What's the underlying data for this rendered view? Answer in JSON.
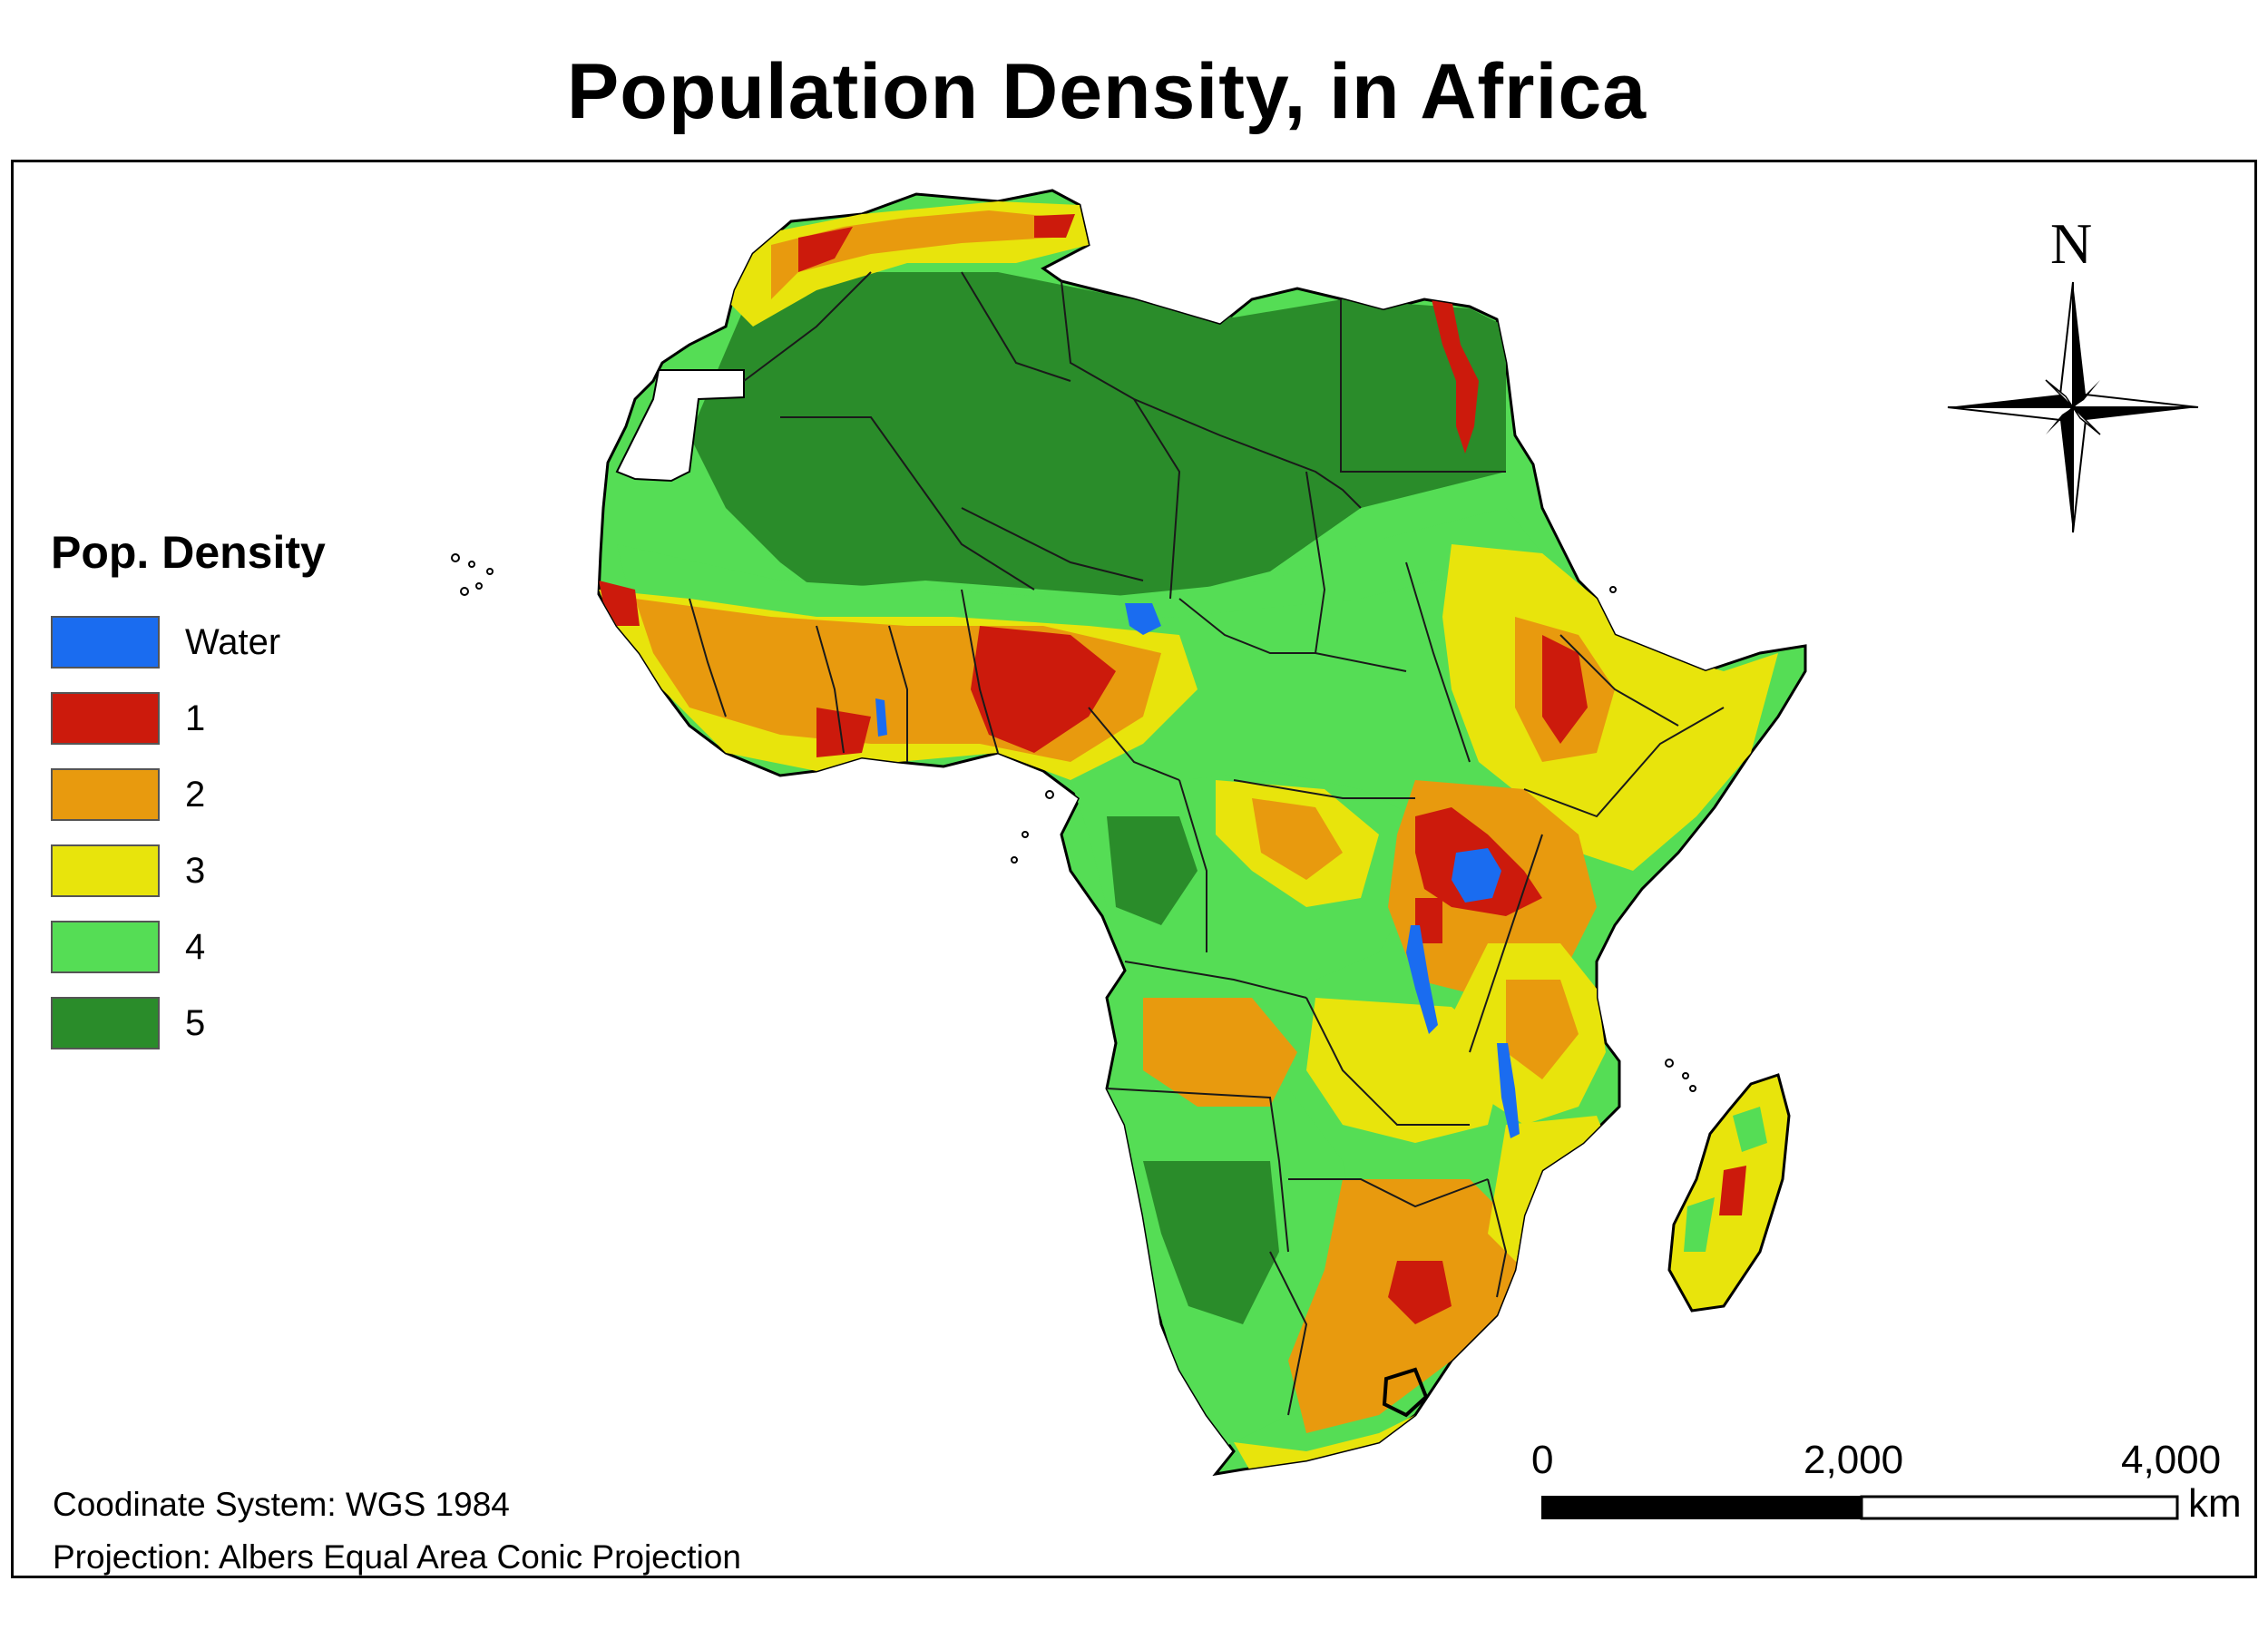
{
  "title": "Population Density, in Africa",
  "legend": {
    "title": "Pop. Density",
    "items": [
      {
        "label": "Water",
        "color": "#1a6cf0"
      },
      {
        "label": "1",
        "color": "#cc1a0c"
      },
      {
        "label": "2",
        "color": "#e89a0e"
      },
      {
        "label": "3",
        "color": "#e8e40c"
      },
      {
        "label": "4",
        "color": "#55dd55"
      },
      {
        "label": "5",
        "color": "#2a8c2a"
      }
    ]
  },
  "notes": {
    "coordinate_system": "Coodinate System: WGS 1984",
    "projection": "Projection: Albers Equal Area Conic Projection"
  },
  "scale_bar": {
    "ticks": [
      "0",
      "2,000",
      "4,000"
    ],
    "unit": "km"
  },
  "north_arrow": {
    "letter": "N",
    "icon": "compass-rose-icon"
  }
}
